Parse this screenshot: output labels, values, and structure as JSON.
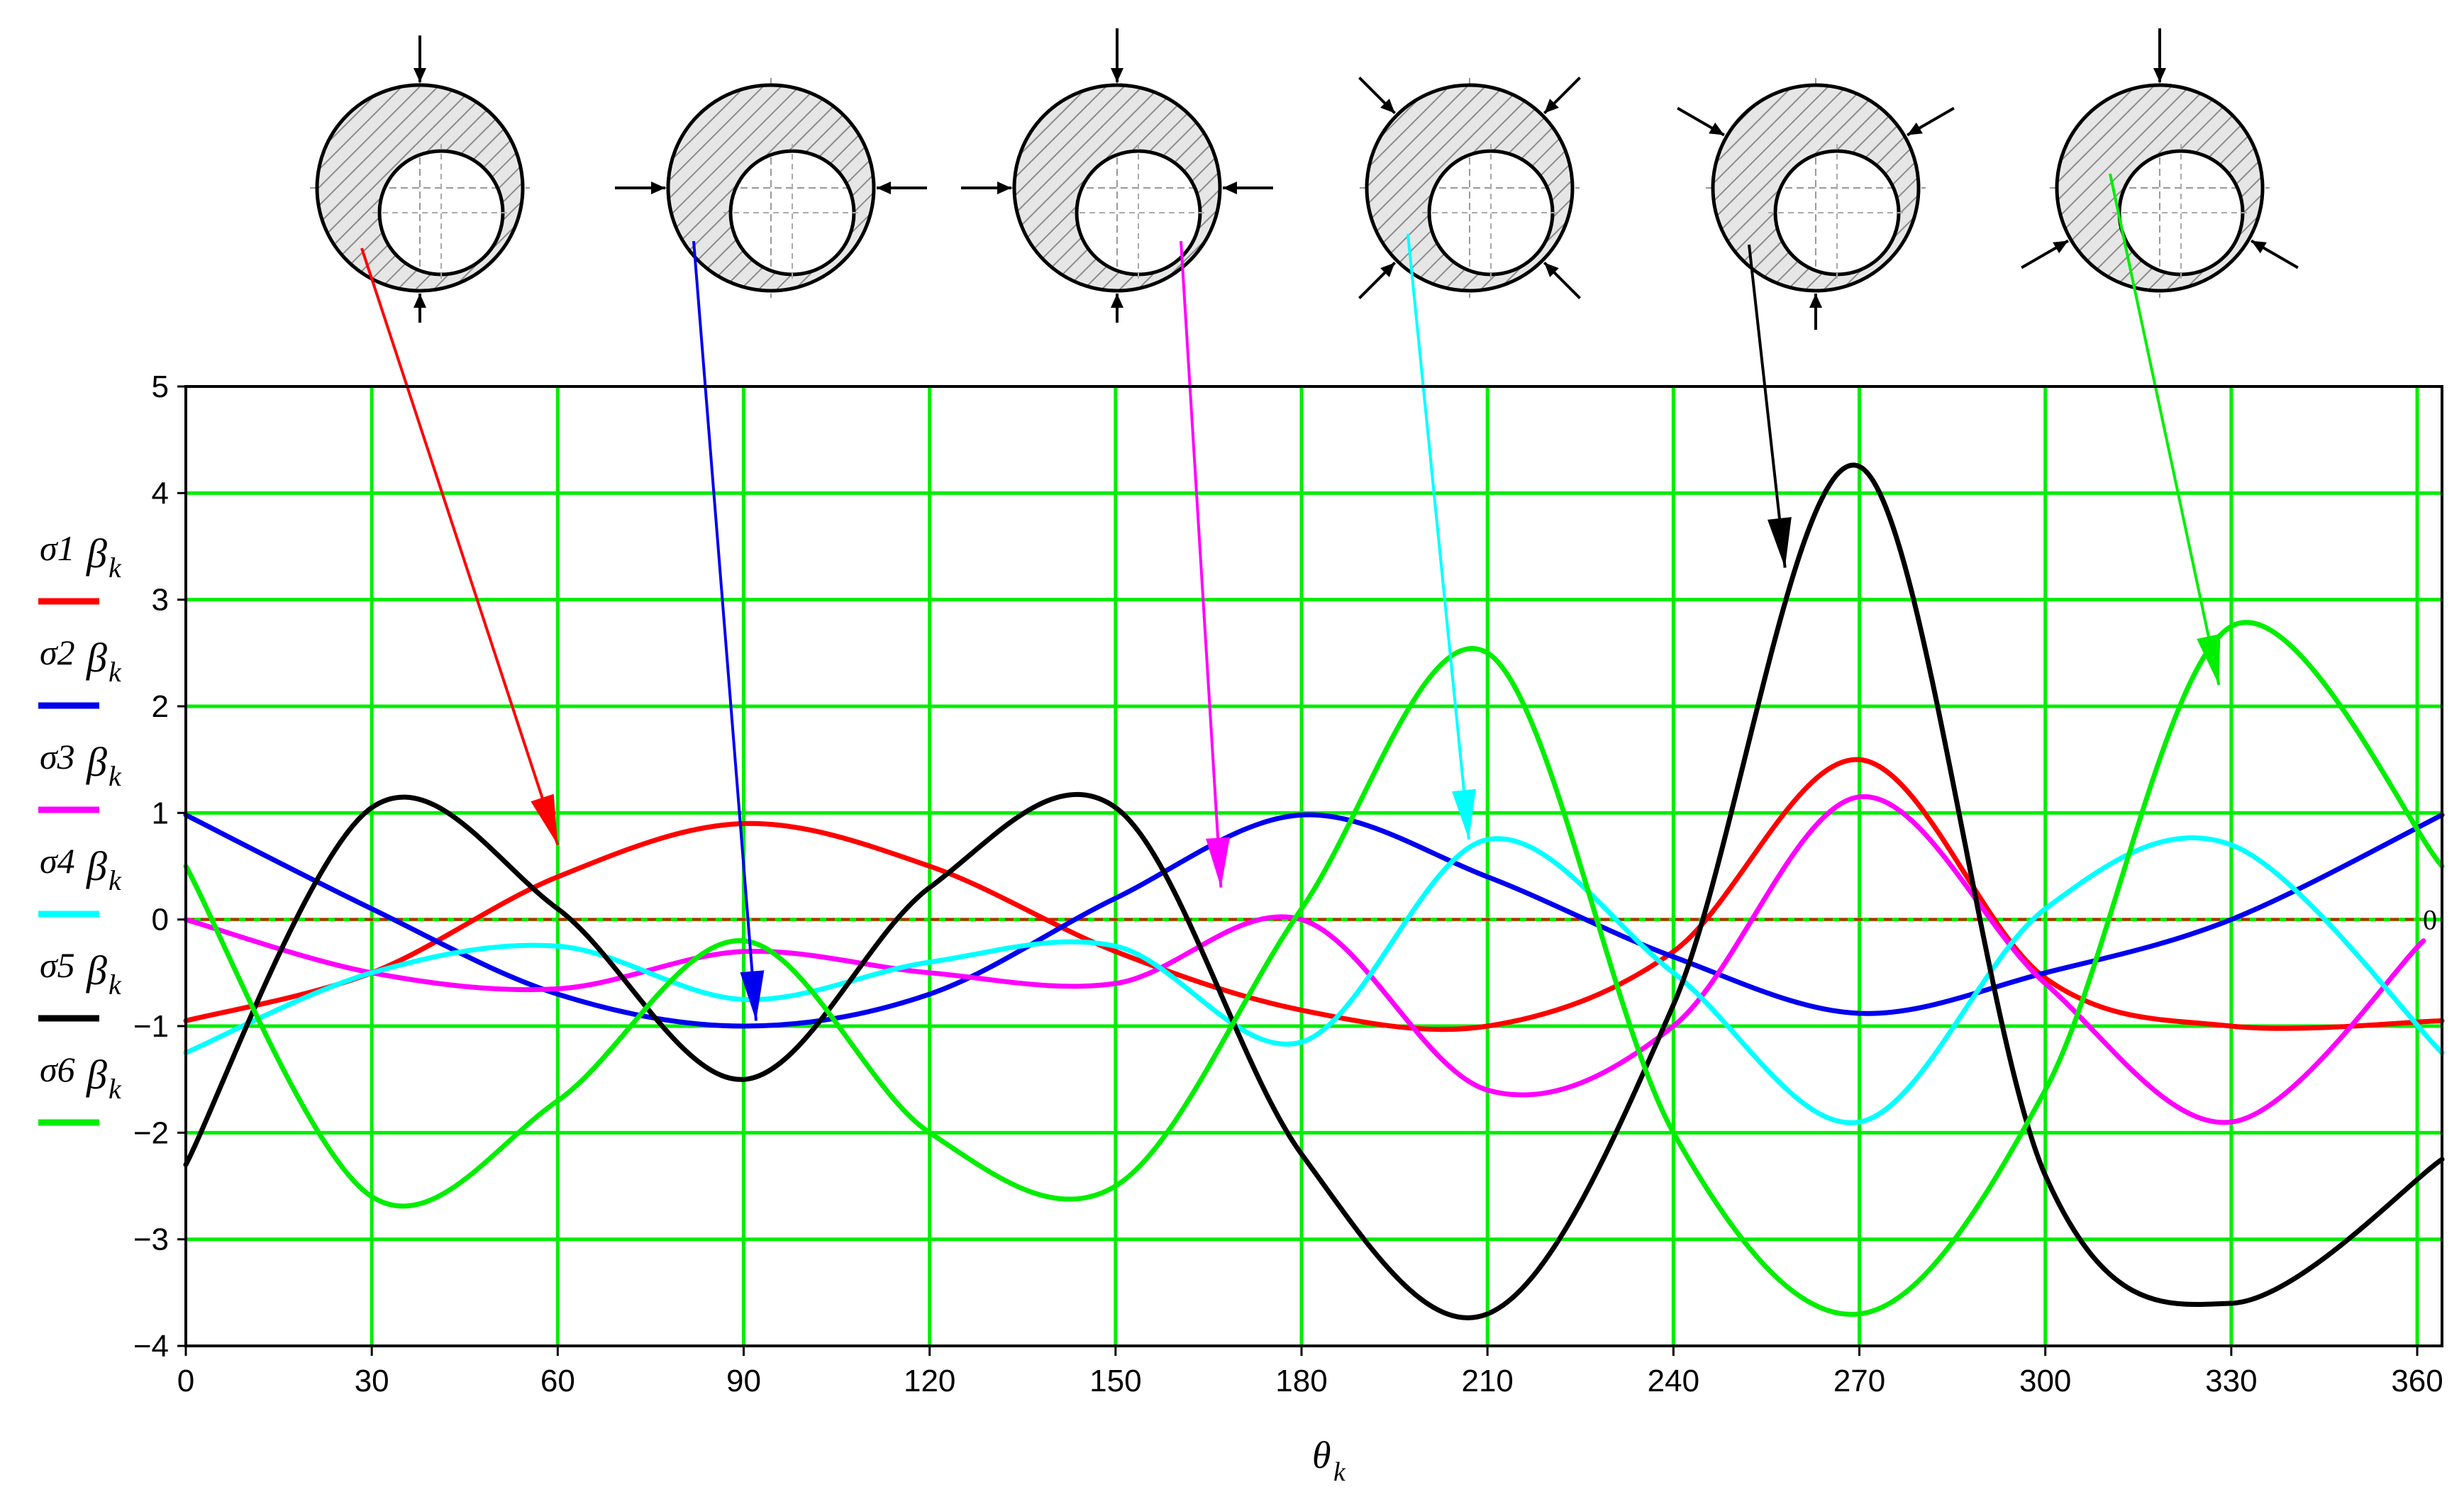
{
  "chart_data": {
    "type": "line",
    "xlabel": "θ",
    "xlabel_sub": "k",
    "ylabel": "",
    "xlim": [
      0,
      364
    ],
    "ylim": [
      -4,
      5
    ],
    "xticks": [
      "0",
      "30",
      "60",
      "90",
      "120",
      "150",
      "180",
      "210",
      "240",
      "270",
      "300",
      "330",
      "360"
    ],
    "yticks": [
      "5",
      "4",
      "3",
      "2",
      "1",
      "0",
      "−1",
      "−2",
      "−3",
      "−4"
    ],
    "xtick_values": [
      0,
      30,
      60,
      90,
      120,
      150,
      180,
      210,
      240,
      270,
      300,
      330,
      360
    ],
    "ytick_values": [
      5,
      4,
      3,
      2,
      1,
      0,
      -1,
      -2,
      -3,
      -4
    ],
    "grid": true,
    "grid_color": "#00ee00",
    "zero_line": {
      "y": 0,
      "label": "0",
      "color": "#ff0000"
    },
    "legend_position": "left",
    "series": [
      {
        "name": "σ1",
        "sub": "β",
        "subk": "k",
        "color": "#ff0000",
        "x": [
          0,
          30,
          60,
          90,
          120,
          150,
          180,
          210,
          240,
          270,
          300,
          330,
          364
        ],
        "y": [
          -0.95,
          -0.5,
          0.4,
          0.9,
          0.5,
          -0.3,
          -0.85,
          -1.0,
          -0.3,
          1.5,
          -0.55,
          -1.0,
          -0.95
        ]
      },
      {
        "name": "σ2",
        "sub": "β",
        "subk": "k",
        "color": "#0000ee",
        "x": [
          0,
          30,
          60,
          90,
          120,
          150,
          180,
          210,
          240,
          270,
          300,
          330,
          364
        ],
        "y": [
          0.98,
          0.1,
          -0.7,
          -1.0,
          -0.7,
          0.2,
          0.98,
          0.4,
          -0.35,
          -0.88,
          -0.5,
          0.0,
          0.98
        ]
      },
      {
        "name": "σ3",
        "sub": "β",
        "subk": "k",
        "color": "#ff00ff",
        "x": [
          0,
          30,
          60,
          90,
          120,
          150,
          180,
          210,
          240,
          270,
          300,
          330,
          361
        ],
        "y": [
          0.0,
          -0.5,
          -0.65,
          -0.3,
          -0.5,
          -0.6,
          0.0,
          -1.6,
          -1.0,
          1.15,
          -0.6,
          -1.9,
          -0.2
        ]
      },
      {
        "name": "σ4",
        "sub": "β",
        "subk": "k",
        "color": "#00ffff",
        "x": [
          0,
          30,
          60,
          90,
          120,
          150,
          180,
          210,
          240,
          270,
          300,
          330,
          364
        ],
        "y": [
          -1.25,
          -0.5,
          -0.25,
          -0.75,
          -0.4,
          -0.25,
          -1.15,
          0.75,
          -0.5,
          -1.9,
          0.1,
          0.7,
          -1.25
        ]
      },
      {
        "name": "σ5",
        "sub": "β",
        "subk": "k",
        "color": "#000000",
        "x": [
          0,
          30,
          60,
          90,
          120,
          150,
          180,
          210,
          240,
          270,
          300,
          330,
          364
        ],
        "y": [
          -2.3,
          1.05,
          0.1,
          -1.5,
          0.3,
          1.05,
          -2.2,
          -3.7,
          -0.8,
          4.25,
          -2.4,
          -3.6,
          -2.25
        ]
      },
      {
        "name": "σ6",
        "sub": "β",
        "subk": "k",
        "color": "#00ee00",
        "x": [
          0,
          30,
          60,
          90,
          120,
          150,
          180,
          210,
          240,
          270,
          300,
          330,
          364
        ],
        "y": [
          0.5,
          -2.6,
          -1.7,
          -0.2,
          -2.0,
          -2.5,
          0.1,
          2.5,
          -2.0,
          -3.7,
          -1.6,
          2.75,
          0.5
        ]
      }
    ],
    "annotations": [
      {
        "type": "arrow",
        "color": "#ff0000",
        "from_icon": 1,
        "to": [
          60,
          0.7
        ]
      },
      {
        "type": "arrow",
        "color": "#0000ee",
        "from_icon": 2,
        "to": [
          92,
          -0.95
        ]
      },
      {
        "type": "arrow",
        "color": "#ff00ff",
        "from_icon": 3,
        "to": [
          167,
          0.3
        ]
      },
      {
        "type": "arrow",
        "color": "#00ffff",
        "from_icon": 4,
        "to": [
          207,
          0.75
        ]
      },
      {
        "type": "arrow",
        "color": "#000000",
        "from_icon": 5,
        "to": [
          258,
          3.3
        ]
      },
      {
        "type": "arrow",
        "color": "#00ee00",
        "from_icon": 6,
        "to": [
          328,
          2.2
        ]
      }
    ],
    "load_icons": [
      {
        "name": "load-case-1",
        "loads": "vertical"
      },
      {
        "name": "load-case-2",
        "loads": "horizontal"
      },
      {
        "name": "load-case-3",
        "loads": "cross"
      },
      {
        "name": "load-case-4",
        "loads": "diagonal-four"
      },
      {
        "name": "load-case-5",
        "loads": "mixed"
      },
      {
        "name": "load-case-6",
        "loads": "triad"
      }
    ]
  }
}
